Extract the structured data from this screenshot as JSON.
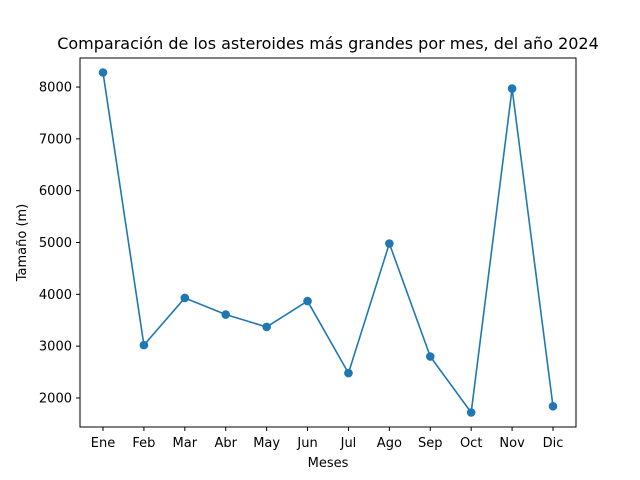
{
  "chart_data": {
    "type": "line",
    "title": "Comparación de los asteroides más grandes por mes, del año 2024",
    "xlabel": "Meses",
    "ylabel": "Tamaño (m)",
    "categories": [
      "Ene",
      "Feb",
      "Mar",
      "Abr",
      "May",
      "Jun",
      "Jul",
      "Ago",
      "Sep",
      "Oct",
      "Nov",
      "Dic"
    ],
    "series": [
      {
        "values": [
          8280,
          3020,
          3930,
          3610,
          3370,
          3870,
          2480,
          4980,
          2800,
          1720,
          7970,
          1840
        ],
        "color": "#1f77b4",
        "marker": "circle"
      }
    ],
    "ylim": [
      1440,
      8560
    ],
    "yticks": [
      2000,
      3000,
      4000,
      5000,
      6000,
      7000,
      8000
    ],
    "grid": false,
    "legend": "none"
  }
}
